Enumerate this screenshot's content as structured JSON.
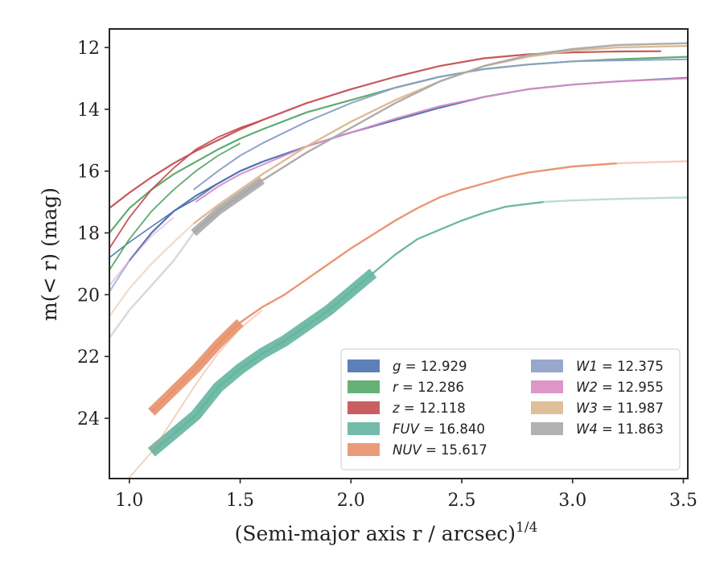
{
  "chart_data": {
    "type": "line",
    "xlabel": "(Semi-major axis r / arcsec)",
    "xlabel_sup": "1/4",
    "ylabel": "m(< r) (mag)",
    "xlim": [
      0.91,
      3.52
    ],
    "ylim": [
      25.95,
      11.4
    ],
    "y_inverted": true,
    "grid": false,
    "legend_position": "lower-right",
    "xticks": [
      "1.0",
      "1.5",
      "2.0",
      "2.5",
      "3.0",
      "3.5"
    ],
    "xtick_values": [
      1.0,
      1.5,
      2.0,
      2.5,
      3.0,
      3.5
    ],
    "yticks": [
      "12",
      "14",
      "16",
      "18",
      "20",
      "22",
      "24"
    ],
    "ytick_values": [
      12,
      14,
      16,
      18,
      20,
      22,
      24
    ],
    "series": [
      {
        "key": "g",
        "band": "g",
        "value": "12.929",
        "color": "#4c72b0",
        "x": [
          0.91,
          1.0,
          1.1,
          1.2,
          1.3,
          1.4,
          1.5,
          1.6,
          1.8,
          2.0,
          2.2,
          2.4,
          2.6,
          2.8,
          3.0,
          3.2,
          3.52
        ],
        "y": [
          19.9,
          18.9,
          18.0,
          17.3,
          16.8,
          16.4,
          16.0,
          15.7,
          15.2,
          14.75,
          14.35,
          13.95,
          13.6,
          13.35,
          13.2,
          13.1,
          12.98
        ],
        "faint_until": 1.0,
        "width": 2.2
      },
      {
        "key": "g2",
        "band": "g",
        "value": "",
        "color": "#4c72b0",
        "x": [
          0.91,
          1.0,
          1.1,
          1.2,
          1.3,
          1.4,
          1.5,
          1.6
        ],
        "y": [
          18.8,
          18.3,
          17.8,
          17.3,
          16.9,
          16.4,
          16.0,
          15.7
        ],
        "faint_until": 0,
        "width": 1.6
      },
      {
        "key": "r",
        "band": "r",
        "value": "12.286",
        "color": "#55a868",
        "x": [
          0.91,
          1.0,
          1.1,
          1.2,
          1.3,
          1.4,
          1.5,
          1.6,
          1.8,
          2.0,
          2.2,
          2.4,
          2.6,
          2.8,
          3.0,
          3.2,
          3.52
        ],
        "y": [
          18.0,
          17.2,
          16.6,
          16.1,
          15.7,
          15.3,
          14.95,
          14.65,
          14.1,
          13.7,
          13.3,
          12.95,
          12.7,
          12.55,
          12.45,
          12.38,
          12.3
        ],
        "faint_until": 0,
        "width": 2.2
      },
      {
        "key": "r2",
        "band": "r",
        "value": "",
        "color": "#55a868",
        "x": [
          0.91,
          1.0,
          1.1,
          1.2,
          1.3,
          1.4,
          1.5
        ],
        "y": [
          19.2,
          18.2,
          17.3,
          16.6,
          16.0,
          15.5,
          15.1
        ],
        "faint_until": 0,
        "width": 1.8
      },
      {
        "key": "z",
        "band": "z",
        "value": "12.118",
        "color": "#c44e52",
        "x": [
          0.91,
          1.0,
          1.1,
          1.2,
          1.3,
          1.4,
          1.5,
          1.6,
          1.8,
          2.0,
          2.2,
          2.4,
          2.6,
          2.8,
          3.0,
          3.2,
          3.4
        ],
        "y": [
          17.2,
          16.7,
          16.2,
          15.75,
          15.35,
          15.0,
          14.65,
          14.35,
          13.8,
          13.35,
          12.95,
          12.6,
          12.35,
          12.22,
          12.16,
          12.13,
          12.12
        ],
        "faint_until": 0,
        "width": 2.2
      },
      {
        "key": "z2",
        "band": "z",
        "value": "",
        "color": "#c44e52",
        "x": [
          0.91,
          1.0,
          1.1,
          1.2,
          1.3,
          1.4,
          1.5,
          1.6
        ],
        "y": [
          18.5,
          17.5,
          16.6,
          15.9,
          15.3,
          14.9,
          14.6,
          14.35
        ],
        "faint_until": 0,
        "width": 1.8
      },
      {
        "key": "fuv",
        "band": "FUV",
        "value": "16.840",
        "color": "#64b5a0",
        "x": [
          1.1,
          1.2,
          1.3,
          1.4,
          1.5,
          1.6,
          1.7,
          1.8,
          1.9,
          2.0,
          2.1,
          2.2,
          2.3,
          2.4,
          2.5,
          2.6,
          2.7,
          2.87,
          3.0,
          3.2,
          3.52
        ],
        "y": [
          25.1,
          24.5,
          23.9,
          23.0,
          22.4,
          21.9,
          21.5,
          21.0,
          20.5,
          19.9,
          19.3,
          18.7,
          18.2,
          17.9,
          17.6,
          17.35,
          17.15,
          17.0,
          16.95,
          16.9,
          16.85
        ],
        "band_width": 14,
        "band_until": 2.1,
        "faint_after": 2.87,
        "width": 2.4
      },
      {
        "key": "nuv",
        "band": "NUV",
        "value": "15.617",
        "color": "#e8916b",
        "x": [
          1.1,
          1.2,
          1.3,
          1.4,
          1.5,
          1.6,
          1.7,
          1.8,
          1.9,
          2.0,
          2.1,
          2.2,
          2.3,
          2.4,
          2.5,
          2.6,
          2.7,
          2.8,
          3.0,
          3.2,
          3.52
        ],
        "y": [
          23.8,
          23.1,
          22.4,
          21.6,
          20.9,
          20.4,
          20.0,
          19.5,
          19.0,
          18.5,
          18.05,
          17.6,
          17.2,
          16.85,
          16.6,
          16.4,
          16.2,
          16.05,
          15.85,
          15.75,
          15.68
        ],
        "band_width": 12,
        "band_until": 1.5,
        "faint_after": 3.2,
        "width": 2.4
      },
      {
        "key": "nuv2",
        "band": "NUV",
        "value": "",
        "color": "#e8916b",
        "x": [
          0.99,
          1.1,
          1.2,
          1.3,
          1.4,
          1.5,
          1.6
        ],
        "y": [
          26.0,
          25.1,
          24.0,
          22.9,
          21.9,
          21.1,
          20.5
        ],
        "faint_until": 1.6,
        "width": 1.8
      },
      {
        "key": "w1",
        "band": "W1",
        "value": "12.375",
        "color": "#8c9fc6",
        "x": [
          1.29,
          1.4,
          1.5,
          1.6,
          1.8,
          2.0,
          2.2,
          2.4,
          2.6,
          2.8,
          3.0,
          3.2,
          3.52
        ],
        "y": [
          16.6,
          16.0,
          15.5,
          15.1,
          14.4,
          13.8,
          13.3,
          12.95,
          12.7,
          12.55,
          12.45,
          12.42,
          12.38
        ],
        "faint_until": 0,
        "width": 2.0
      },
      {
        "key": "w2",
        "band": "W2",
        "value": "12.955",
        "color": "#da8bc3",
        "x": [
          0.91,
          1.0,
          1.1,
          1.2,
          1.3,
          1.4,
          1.5,
          1.6,
          1.8,
          2.0,
          2.2,
          2.4,
          2.6,
          2.8,
          3.0,
          3.2,
          3.52
        ],
        "y": [
          19.7,
          18.9,
          18.1,
          17.5,
          17.0,
          16.5,
          16.1,
          15.8,
          15.2,
          14.75,
          14.3,
          13.9,
          13.6,
          13.35,
          13.2,
          13.1,
          13.0
        ],
        "faint_until": 1.29,
        "width": 2.0
      },
      {
        "key": "w3",
        "band": "W3",
        "value": "11.987",
        "color": "#dbb88f",
        "x": [
          0.91,
          1.0,
          1.1,
          1.2,
          1.29,
          1.4,
          1.5,
          1.6,
          1.8,
          2.0,
          2.2,
          2.4,
          2.6,
          2.8,
          3.0,
          3.2,
          3.52
        ],
        "y": [
          20.7,
          19.8,
          19.0,
          18.3,
          17.7,
          17.1,
          16.6,
          16.1,
          15.2,
          14.4,
          13.7,
          13.1,
          12.6,
          12.3,
          12.1,
          12.0,
          11.95
        ],
        "faint_until": 1.29,
        "width": 2.4
      },
      {
        "key": "w4",
        "band": "W4",
        "value": "11.863",
        "color": "#a9a9a9",
        "x": [
          0.91,
          1.0,
          1.1,
          1.2,
          1.29,
          1.4,
          1.5,
          1.6,
          1.8,
          2.0,
          2.2,
          2.4,
          2.6,
          2.8,
          3.0,
          3.2,
          3.52
        ],
        "y": [
          21.4,
          20.5,
          19.7,
          18.9,
          18.0,
          17.3,
          16.8,
          16.3,
          15.4,
          14.6,
          13.8,
          13.1,
          12.6,
          12.25,
          12.05,
          11.92,
          11.86
        ],
        "band_width": 10,
        "band_from": 1.29,
        "band_until": 1.6,
        "faint_until": 1.29,
        "width": 2.4
      }
    ],
    "legend": [
      {
        "band": "g",
        "value": "12.929",
        "color": "#4c72b0"
      },
      {
        "band": "r",
        "value": "12.286",
        "color": "#55a868"
      },
      {
        "band": "z",
        "value": "12.118",
        "color": "#c44e52"
      },
      {
        "band": "FUV",
        "value": "16.840",
        "color": "#64b5a0"
      },
      {
        "band": "NUV",
        "value": "15.617",
        "color": "#e8916b"
      },
      {
        "band": "W1",
        "value": "12.375",
        "color": "#8c9fc6"
      },
      {
        "band": "W2",
        "value": "12.955",
        "color": "#da8bc3"
      },
      {
        "band": "W3",
        "value": "11.987",
        "color": "#dbb88f"
      },
      {
        "band": "W4",
        "value": "11.863",
        "color": "#a9a9a9"
      }
    ]
  }
}
